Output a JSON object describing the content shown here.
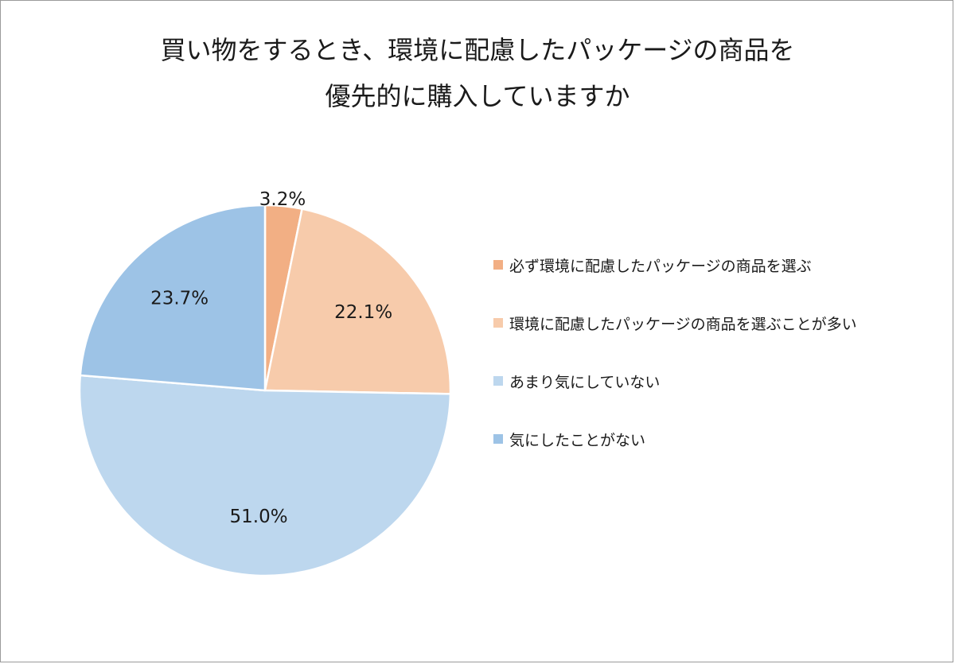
{
  "chart_data": {
    "type": "pie",
    "title_lines": [
      "買い物をするとき、環境に配慮したパッケージの商品を",
      "優先的に購入していますか"
    ],
    "slices": [
      {
        "label": "必ず環境に配慮したパッケージの商品を選ぶ",
        "value": 3.2,
        "display": "3.2%",
        "color": "#F2AF84"
      },
      {
        "label": "環境に配慮したパッケージの商品を選ぶことが多い",
        "value": 22.1,
        "display": "22.1%",
        "color": "#F7CBAB"
      },
      {
        "label": "あまり気にしていない",
        "value": 51.0,
        "display": "51.0%",
        "color": "#BDD7EE"
      },
      {
        "label": "気にしたことがない",
        "value": 23.7,
        "display": "23.7%",
        "color": "#9DC3E6"
      }
    ],
    "legend_position": "right",
    "start_angle": "12 o'clock",
    "direction": "clockwise"
  }
}
